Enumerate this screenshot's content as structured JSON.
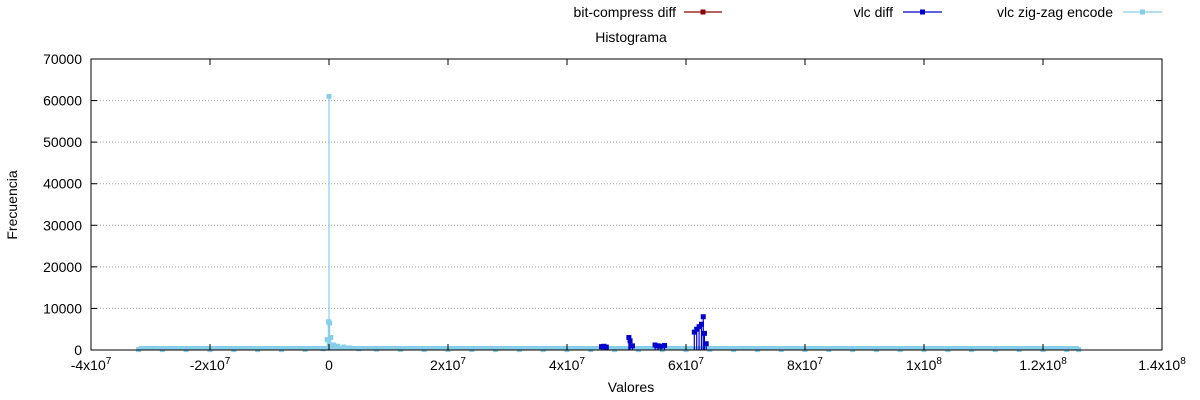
{
  "chart_data": {
    "type": "line",
    "title": "Histograma",
    "xlabel": "Valores",
    "ylabel": "Frecuencia",
    "xlim": [
      -40000000,
      140000000
    ],
    "ylim": [
      0,
      70000
    ],
    "grid": true,
    "legend_position": "top",
    "x_tick_values": [
      -40000000,
      -20000000,
      0,
      20000000,
      40000000,
      60000000,
      80000000,
      100000000,
      120000000,
      140000000
    ],
    "x_tick_labels": [
      {
        "base": "-4x10",
        "exp": "7"
      },
      {
        "base": "-2x10",
        "exp": "7"
      },
      {
        "base": "0",
        "exp": ""
      },
      {
        "base": "2x10",
        "exp": "7"
      },
      {
        "base": "4x10",
        "exp": "7"
      },
      {
        "base": "6x10",
        "exp": "7"
      },
      {
        "base": "8x10",
        "exp": "7"
      },
      {
        "base": "1x10",
        "exp": "8"
      },
      {
        "base": "1.2x10",
        "exp": "8"
      },
      {
        "base": "1.4x10",
        "exp": "8"
      }
    ],
    "y_ticks": [
      0,
      10000,
      20000,
      30000,
      40000,
      50000,
      60000,
      70000
    ],
    "y_tick_labels": [
      "0",
      "10000",
      "20000",
      "30000",
      "40000",
      "50000",
      "60000",
      "70000"
    ],
    "series": [
      {
        "name": "bit-compress diff",
        "color": "#8b0000",
        "style": "impulses-points",
        "points": []
      },
      {
        "name": "vlc diff",
        "color": "#0000cc",
        "style": "impulses-points",
        "points": [
          [
            45800000,
            800
          ],
          [
            46200000,
            900
          ],
          [
            46600000,
            700
          ],
          [
            50400000,
            3000
          ],
          [
            50600000,
            2200
          ],
          [
            51000000,
            1000
          ],
          [
            54800000,
            1200
          ],
          [
            55300000,
            1000
          ],
          [
            55800000,
            900
          ],
          [
            56400000,
            1100
          ],
          [
            61400000,
            4300
          ],
          [
            61800000,
            5000
          ],
          [
            62200000,
            5600
          ],
          [
            62600000,
            6200
          ],
          [
            62900000,
            8000
          ],
          [
            63100000,
            4000
          ],
          [
            63400000,
            1500
          ]
        ]
      },
      {
        "name": "vlc zig-zag encode",
        "color": "#87ceeb",
        "style": "impulses-points",
        "points": [
          [
            -32000000,
            100
          ],
          [
            -28000000,
            100
          ],
          [
            -24000000,
            100
          ],
          [
            -20000000,
            100
          ],
          [
            -16000000,
            100
          ],
          [
            -12000000,
            100
          ],
          [
            -8000000,
            100
          ],
          [
            -4000000,
            150
          ],
          [
            -1000000,
            300
          ],
          [
            -300000,
            2500
          ],
          [
            -100000,
            6800
          ],
          [
            0,
            61000
          ],
          [
            100000,
            6500
          ],
          [
            300000,
            3000
          ],
          [
            800000,
            1200
          ],
          [
            1500000,
            900
          ],
          [
            2500000,
            700
          ],
          [
            3500000,
            500
          ],
          [
            5000000,
            300
          ],
          [
            8000000,
            200
          ],
          [
            12000000,
            150
          ],
          [
            16000000,
            100
          ],
          [
            20000000,
            100
          ],
          [
            24000000,
            100
          ],
          [
            28000000,
            100
          ],
          [
            32000000,
            100
          ],
          [
            36000000,
            100
          ],
          [
            40000000,
            100
          ],
          [
            44000000,
            100
          ],
          [
            48000000,
            100
          ],
          [
            52000000,
            100
          ],
          [
            56000000,
            100
          ],
          [
            60000000,
            100
          ],
          [
            64000000,
            150
          ],
          [
            68000000,
            100
          ],
          [
            72000000,
            100
          ],
          [
            76000000,
            100
          ],
          [
            80000000,
            100
          ],
          [
            84000000,
            100
          ],
          [
            88000000,
            100
          ],
          [
            92000000,
            100
          ],
          [
            96000000,
            100
          ],
          [
            100000000,
            100
          ],
          [
            104000000,
            100
          ],
          [
            108000000,
            100
          ],
          [
            112000000,
            100
          ],
          [
            116000000,
            100
          ],
          [
            120000000,
            100
          ],
          [
            124000000,
            100
          ],
          [
            126000000,
            100
          ]
        ]
      }
    ]
  }
}
